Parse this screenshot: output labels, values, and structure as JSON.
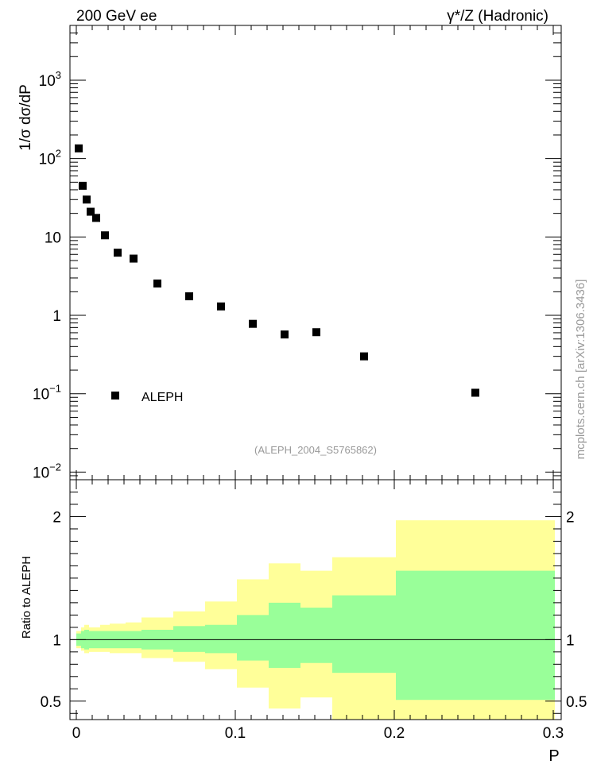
{
  "chart_data": [
    {
      "type": "scatter",
      "panel": "main",
      "title_left": "200 GeV ee",
      "title_right": "γ*/Z (Hadronic)",
      "ylabel": "1/σ  dσ/dP",
      "yscale": "log",
      "ylim": [
        0.008,
        5000
      ],
      "xlim": [
        -0.004,
        0.305
      ],
      "y_ticks": [
        {
          "value": 0.01,
          "base": "10",
          "exp": "−2"
        },
        {
          "value": 0.1,
          "base": "10",
          "exp": "−1"
        },
        {
          "value": 1,
          "base": "1",
          "exp": ""
        },
        {
          "value": 10,
          "base": "10",
          "exp": ""
        },
        {
          "value": 100,
          "base": "10",
          "exp": "2"
        },
        {
          "value": 1000,
          "base": "10",
          "exp": "3"
        }
      ],
      "legend": {
        "label": "ALEPH",
        "position": "bottom-left"
      },
      "annotation": "(ALEPH_2004_S5765862)",
      "side_label": "mcplots.cern.ch [arXiv:1306.3436]",
      "series": [
        {
          "name": "ALEPH",
          "x": [
            0.0015,
            0.004,
            0.0065,
            0.009,
            0.0125,
            0.018,
            0.026,
            0.036,
            0.051,
            0.071,
            0.091,
            0.111,
            0.131,
            0.151,
            0.181,
            0.251
          ],
          "values": [
            135,
            45,
            30,
            21,
            17.5,
            10.5,
            6.3,
            5.3,
            2.55,
            1.75,
            1.3,
            0.78,
            0.57,
            0.61,
            0.3,
            0.103
          ]
        }
      ]
    },
    {
      "type": "area",
      "panel": "ratio",
      "ylabel": "Ratio to ALEPH",
      "xlabel": "P",
      "xlim": [
        -0.004,
        0.305
      ],
      "ylim": [
        0.35,
        2.3
      ],
      "y_ticks": [
        "0.5",
        "1",
        "2"
      ],
      "x_ticks": [
        "0",
        "0.1",
        "0.2",
        "0.3"
      ],
      "reference_line": 1,
      "bins": [
        0,
        0.003,
        0.005,
        0.008,
        0.01,
        0.015,
        0.021,
        0.031,
        0.041,
        0.061,
        0.081,
        0.101,
        0.121,
        0.141,
        0.161,
        0.201,
        0.301
      ],
      "band_inner": [
        {
          "low": 0.95,
          "high": 1.05
        },
        {
          "low": 0.93,
          "high": 1.07
        },
        {
          "low": 0.92,
          "high": 1.08
        },
        {
          "low": 0.93,
          "high": 1.07
        },
        {
          "low": 0.93,
          "high": 1.07
        },
        {
          "low": 0.93,
          "high": 1.07
        },
        {
          "low": 0.93,
          "high": 1.07
        },
        {
          "low": 0.93,
          "high": 1.07
        },
        {
          "low": 0.92,
          "high": 1.08
        },
        {
          "low": 0.9,
          "high": 1.11
        },
        {
          "low": 0.89,
          "high": 1.12
        },
        {
          "low": 0.83,
          "high": 1.2
        },
        {
          "low": 0.77,
          "high": 1.3
        },
        {
          "low": 0.81,
          "high": 1.26
        },
        {
          "low": 0.73,
          "high": 1.36
        },
        {
          "low": 0.51,
          "high": 1.56
        }
      ],
      "band_outer": [
        {
          "low": 0.93,
          "high": 1.07
        },
        {
          "low": 0.91,
          "high": 1.1
        },
        {
          "low": 0.89,
          "high": 1.12
        },
        {
          "low": 0.9,
          "high": 1.1
        },
        {
          "low": 0.9,
          "high": 1.1
        },
        {
          "low": 0.9,
          "high": 1.12
        },
        {
          "low": 0.89,
          "high": 1.13
        },
        {
          "low": 0.89,
          "high": 1.14
        },
        {
          "low": 0.85,
          "high": 1.18
        },
        {
          "low": 0.82,
          "high": 1.23
        },
        {
          "low": 0.76,
          "high": 1.31
        },
        {
          "low": 0.61,
          "high": 1.49
        },
        {
          "low": 0.44,
          "high": 1.62
        },
        {
          "low": 0.53,
          "high": 1.56
        },
        {
          "low": 0.35,
          "high": 1.67
        },
        {
          "low": 0.35,
          "high": 1.97
        }
      ]
    }
  ],
  "colors": {
    "inner_band": "#99ff99",
    "outer_band": "#ffff99",
    "marker": "#000000",
    "annotation": "#999999",
    "side_label": "#999999"
  }
}
